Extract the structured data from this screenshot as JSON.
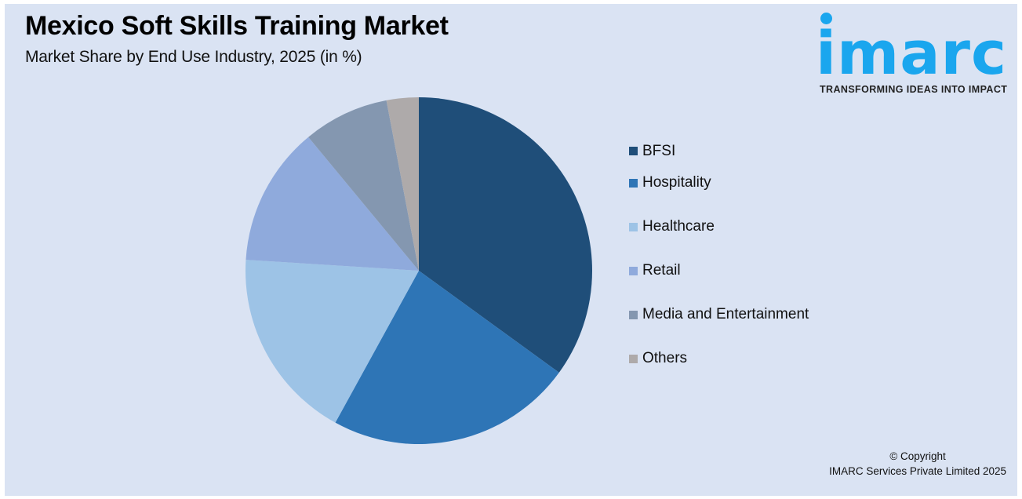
{
  "header": {
    "title": "Mexico Soft Skills Training Market",
    "subtitle": "Market Share by End Use Industry, 2025 (in %)"
  },
  "logo": {
    "wordmark": "imarc",
    "tagline": "TRANSFORMING IDEAS INTO IMPACT",
    "color": "#1AA6EE"
  },
  "legend": {
    "items": [
      {
        "label": "BFSI",
        "color": "#1F4E79"
      },
      {
        "label": "Hospitality",
        "color": "#2E75B6"
      },
      {
        "label": "Healthcare",
        "color": "#9DC3E6"
      },
      {
        "label": "Retail",
        "color": "#8FAADC"
      },
      {
        "label": "Media and Entertainment",
        "color": "#8497B0"
      },
      {
        "label": "Others",
        "color": "#AEAAAA"
      }
    ]
  },
  "footer": {
    "copyright_line1": "© Copyright",
    "copyright_line2": "IMARC Services Private Limited 2025"
  },
  "chart_data": {
    "type": "pie",
    "title": "Mexico Soft Skills Training Market",
    "subtitle": "Market Share by End Use Industry, 2025 (in %)",
    "categories": [
      "BFSI",
      "Hospitality",
      "Healthcare",
      "Retail",
      "Media and Entertainment",
      "Others"
    ],
    "values": [
      35,
      23,
      18,
      13,
      8,
      3
    ],
    "colors": [
      "#1F4E79",
      "#2E75B6",
      "#9DC3E6",
      "#8FAADC",
      "#8497B0",
      "#AEAAAA"
    ],
    "start_angle_deg": 0,
    "direction": "clockwise",
    "data_labels": false,
    "legend_position": "right",
    "center": [
      534,
      345
    ],
    "radius": 221
  }
}
